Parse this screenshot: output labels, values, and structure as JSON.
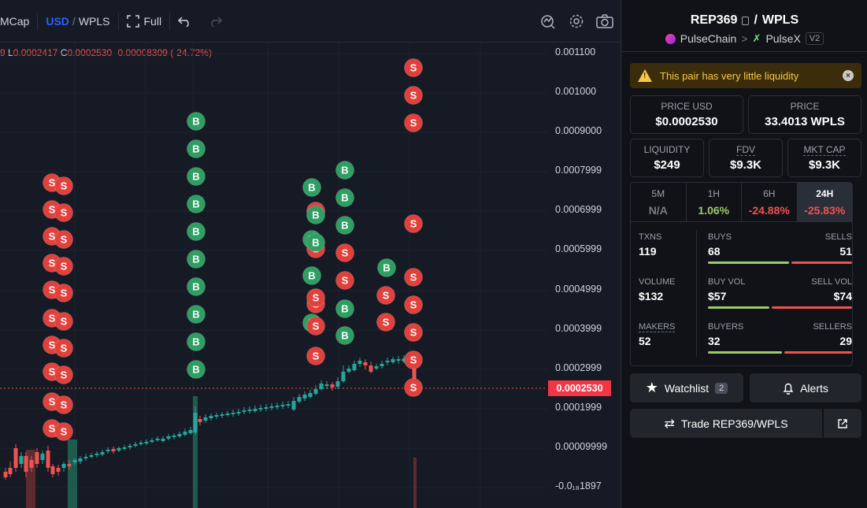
{
  "toolbar": {
    "mcap": "MCap",
    "usd": "USD",
    "slash": "/",
    "wpls": "WPLS",
    "full": "Full"
  },
  "ohlc": {
    "partial": "9",
    "l_label": "L",
    "l_value": "0.0002417",
    "c_label": "C",
    "c_value": "0.0002530",
    "change": "-0.00008309 (-24.72%)"
  },
  "yaxis": {
    "ticks": [
      "0.001100",
      "0.001000",
      "0.0009000",
      "0.0007999",
      "0.0006999",
      "0.0005999",
      "0.0004999",
      "0.0003999",
      "0.0002999",
      "0.0001999",
      "0.00009999",
      "-0.0₁₈1897"
    ],
    "current_price": "0.0002530"
  },
  "chart_data": {
    "type": "candlestick",
    "ylim": [
      -2e-05,
      0.0011
    ],
    "current_price": 0.000253,
    "marker_labels": {
      "buy": "B",
      "sell": "S"
    }
  },
  "panel": {
    "token": "REP369",
    "slash": "/",
    "quote": "WPLS",
    "chain": "PulseChain",
    "chevron": ">",
    "dex": "PulseX",
    "version": "V2",
    "warning": "This pair has very little liquidity",
    "price_usd_label": "PRICE USD",
    "price_usd": "$0.0002530",
    "price_label": "PRICE",
    "price": "33.4013 WPLS",
    "liquidity_label": "LIQUIDITY",
    "liquidity": "$249",
    "fdv_label": "FDV",
    "fdv": "$9.3K",
    "mktcap_label": "MKT CAP",
    "mktcap": "$9.3K",
    "timeframes": [
      {
        "label": "5M",
        "value": "N/A",
        "color": "#787b86"
      },
      {
        "label": "1H",
        "value": "1.06%",
        "color": "#9ccc65"
      },
      {
        "label": "6H",
        "value": "-24.88%",
        "color": "#ef5350"
      },
      {
        "label": "24H",
        "value": "-25.83%",
        "color": "#ef5350"
      }
    ],
    "txns_label": "TXNS",
    "txns": "119",
    "buys_label": "BUYS",
    "buys": "68",
    "sells_label": "SELLS",
    "sells": "51",
    "volume_label": "VOLUME",
    "volume": "$132",
    "buy_vol_label": "BUY VOL",
    "buy_vol": "$57",
    "sell_vol_label": "SELL VOL",
    "sell_vol": "$74",
    "makers_label": "MAKERS",
    "makers": "52",
    "buyers_label": "BUYERS",
    "buyers": "32",
    "sellers_label": "SELLERS",
    "sellers": "29",
    "watchlist_label": "Watchlist",
    "watchlist_count": "2",
    "alerts_label": "Alerts",
    "trade_label": "Trade REP369/WPLS"
  },
  "colors": {
    "up": "#26a69a",
    "down": "#ef5350",
    "buy_marker": "#2e9e62",
    "sell_marker": "#e0413c"
  }
}
